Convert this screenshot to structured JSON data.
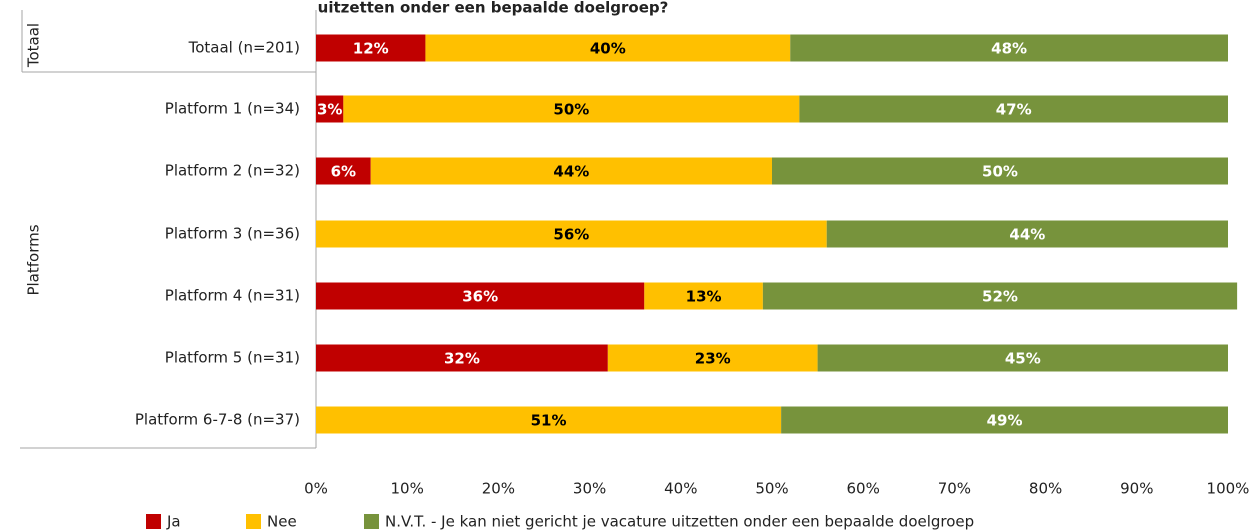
{
  "chart_data": {
    "type": "stacked-bar-horizontal",
    "title": "uitzetten onder een bepaalde doelgroep?",
    "groups": [
      "Totaal",
      "Platforms"
    ],
    "categories": [
      "Totaal (n=201)",
      "Platform 1 (n=34)",
      "Platform 2 (n=32)",
      "Platform 3 (n=36)",
      "Platform 4 (n=31)",
      "Platform 5 (n=31)",
      "Platform 6-7-8 (n=37)"
    ],
    "series": [
      {
        "name": "Ja",
        "color": "#c00000",
        "label_color": "#ffffff",
        "values": [
          12,
          3,
          6,
          0,
          36,
          32,
          0
        ],
        "value_labels": [
          "12%",
          "3%",
          "6%",
          null,
          "36%",
          "32%",
          null
        ]
      },
      {
        "name": "Nee",
        "color": "#ffc000",
        "label_color": "#000000",
        "values": [
          40,
          50,
          44,
          56,
          13,
          23,
          51
        ],
        "value_labels": [
          "40%",
          "50%",
          "44%",
          "56%",
          "13%",
          "23%",
          "51%"
        ]
      },
      {
        "name": "N.V.T. - Je kan niet gericht je vacature uitzetten onder een bepaalde doelgroep",
        "color": "#77933c",
        "label_color": "#ffffff",
        "values": [
          48,
          47,
          50,
          44,
          52,
          45,
          49
        ],
        "value_labels": [
          "48%",
          "47%",
          "50%",
          "44%",
          "52%",
          "45%",
          "49%"
        ]
      }
    ],
    "xlim": [
      0,
      100
    ],
    "xticks": [
      {
        "value": 0,
        "label": "0%"
      },
      {
        "value": 10,
        "label": "10%"
      },
      {
        "value": 20,
        "label": "20%"
      },
      {
        "value": 30,
        "label": "30%"
      },
      {
        "value": 40,
        "label": "40%"
      },
      {
        "value": 50,
        "label": "50%"
      },
      {
        "value": 60,
        "label": "60%"
      },
      {
        "value": 70,
        "label": "70%"
      },
      {
        "value": 80,
        "label": "80%"
      },
      {
        "value": 90,
        "label": "90%"
      },
      {
        "value": 100,
        "label": "100%"
      }
    ],
    "legend": "bottom"
  }
}
